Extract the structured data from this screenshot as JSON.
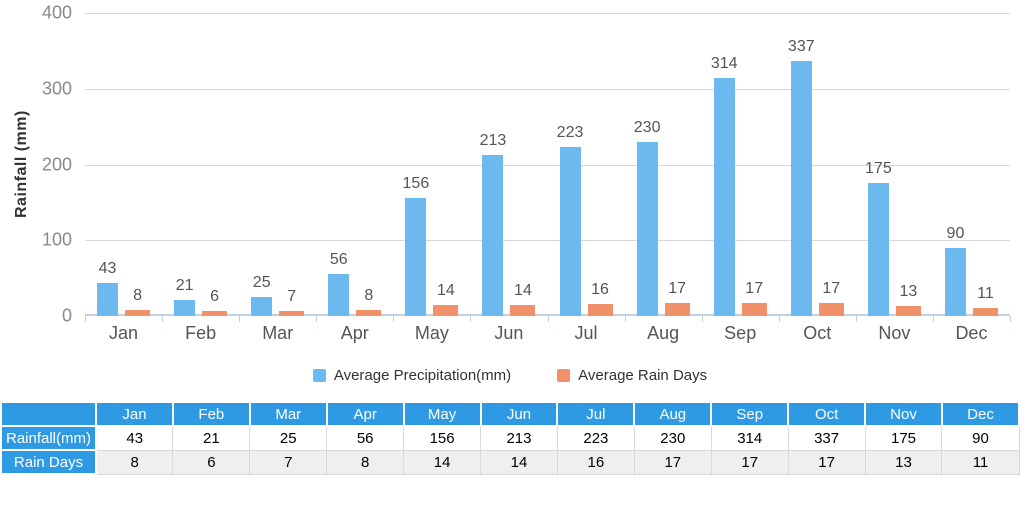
{
  "chart_data": {
    "type": "bar",
    "title": "",
    "ylabel": "Rainfall (mm)",
    "xlabel": "",
    "ylim": [
      0,
      400
    ],
    "yticks": [
      0,
      100,
      200,
      300,
      400
    ],
    "grid": true,
    "legend_position": "bottom",
    "categories": [
      "Jan",
      "Feb",
      "Mar",
      "Apr",
      "May",
      "Jun",
      "Jul",
      "Aug",
      "Sep",
      "Oct",
      "Nov",
      "Dec"
    ],
    "series": [
      {
        "name": "Average Precipitation(mm)",
        "color": "#6cb9f0",
        "values": [
          43,
          21,
          25,
          56,
          156,
          213,
          223,
          230,
          314,
          337,
          175,
          90
        ]
      },
      {
        "name": "Average Rain Days",
        "color": "#f0916a",
        "values": [
          8,
          6,
          7,
          8,
          14,
          14,
          16,
          17,
          17,
          17,
          13,
          11
        ]
      }
    ]
  },
  "table": {
    "corner_label": "",
    "columns": [
      "Jan",
      "Feb",
      "Mar",
      "Apr",
      "May",
      "Jun",
      "Jul",
      "Aug",
      "Sep",
      "Oct",
      "Nov",
      "Dec"
    ],
    "rows": [
      {
        "label": "Rainfall(mm)",
        "values": [
          43,
          21,
          25,
          56,
          156,
          213,
          223,
          230,
          314,
          337,
          175,
          90
        ]
      },
      {
        "label": "Rain Days",
        "values": [
          8,
          6,
          7,
          8,
          14,
          14,
          16,
          17,
          17,
          17,
          13,
          11
        ]
      }
    ]
  },
  "colors": {
    "precipitation_bar": "#6cb9f0",
    "rain_days_bar": "#f0916a",
    "table_header_blue": "#2e9ae4",
    "gridline": "#d8d8d8",
    "axis_line": "#c0d0e0",
    "zebra_row": "#efefef",
    "cell_border": "#d9d9d9"
  }
}
